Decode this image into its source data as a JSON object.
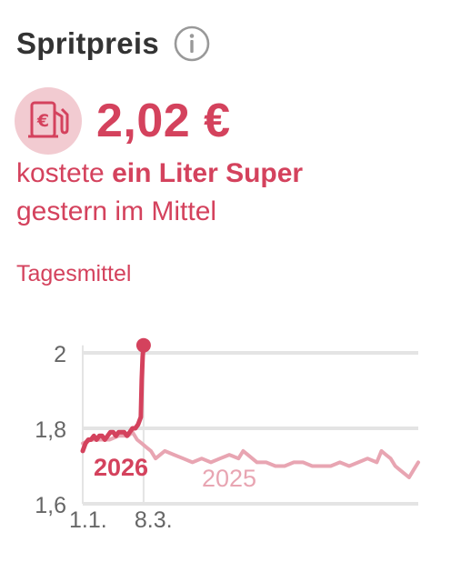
{
  "widget": {
    "title": "Spritpreis",
    "price": "2,02 €",
    "desc_pre": "kostete ",
    "desc_bold": "ein Liter Super",
    "desc_line2": "gestern im Mittel",
    "subtitle": "Tagesmittel",
    "icons": [
      "info-icon",
      "fuel-euro-icon"
    ],
    "colors": {
      "accent": "#d4425d",
      "accent_light": "#e8a5b2",
      "icon_bg": "#f2cbd1",
      "grid": "#e4e4e4",
      "title": "#333333"
    }
  },
  "chart_data": {
    "type": "line",
    "title": "Tagesmittel",
    "xlabel": "",
    "ylabel": "",
    "ylim": [
      1.6,
      2.02
    ],
    "yticks": [
      1.6,
      1.8,
      2.0
    ],
    "ytick_labels": [
      "1,6",
      "1,8",
      "2"
    ],
    "xtick_labels": [
      "1.1.",
      "8.3."
    ],
    "grid": true,
    "series": [
      {
        "name": "2026",
        "color": "#d4425d",
        "day": [
          1,
          4,
          7,
          10,
          13,
          16,
          19,
          22,
          25,
          28,
          31,
          34,
          37,
          40,
          43,
          46,
          49,
          52,
          55,
          58,
          61,
          64,
          65,
          66,
          67
        ],
        "values": [
          1.74,
          1.76,
          1.77,
          1.77,
          1.78,
          1.77,
          1.78,
          1.78,
          1.77,
          1.78,
          1.79,
          1.79,
          1.78,
          1.79,
          1.79,
          1.79,
          1.78,
          1.79,
          1.8,
          1.8,
          1.81,
          1.83,
          1.93,
          1.99,
          2.02
        ]
      },
      {
        "name": "2025",
        "color": "#e8a5b2",
        "day": [
          1,
          10,
          20,
          30,
          40,
          50,
          55,
          60,
          65,
          70,
          75,
          80,
          90,
          100,
          110,
          120,
          130,
          140,
          150,
          160,
          170,
          175,
          180,
          185,
          190,
          200,
          210,
          220,
          230,
          240,
          250,
          260,
          270,
          280,
          290,
          300,
          310,
          320,
          325,
          330,
          335,
          340,
          345,
          350,
          355,
          360,
          365
        ],
        "values": [
          1.76,
          1.77,
          1.77,
          1.77,
          1.78,
          1.78,
          1.79,
          1.77,
          1.76,
          1.75,
          1.74,
          1.72,
          1.74,
          1.73,
          1.72,
          1.71,
          1.72,
          1.71,
          1.72,
          1.73,
          1.72,
          1.74,
          1.73,
          1.72,
          1.71,
          1.71,
          1.7,
          1.7,
          1.71,
          1.71,
          1.7,
          1.7,
          1.7,
          1.71,
          1.7,
          1.71,
          1.72,
          1.71,
          1.74,
          1.73,
          1.72,
          1.7,
          1.69,
          1.68,
          1.67,
          1.69,
          1.71
        ]
      }
    ]
  }
}
